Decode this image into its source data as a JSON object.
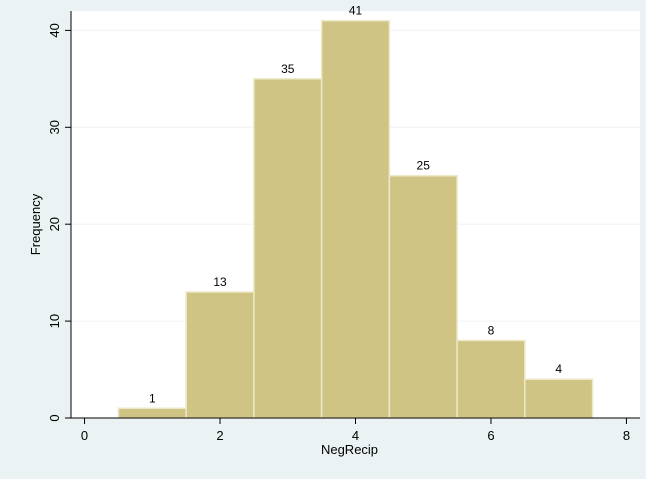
{
  "chart_data": {
    "type": "bar",
    "bin_edges": [
      0.5,
      1.5,
      2.5,
      3.5,
      4.5,
      5.5,
      6.5,
      7.5
    ],
    "values": [
      1,
      13,
      35,
      41,
      25,
      8,
      4
    ],
    "data_labels": [
      "1",
      "13",
      "35",
      "41",
      "25",
      "8",
      "4"
    ],
    "xlabel": "NegRecip",
    "ylabel": "Frequency",
    "xlim": [
      -0.2,
      8.2
    ],
    "ylim": [
      0,
      42
    ],
    "xticks": [
      0,
      2,
      4,
      6,
      8
    ],
    "xtick_labels": [
      "0",
      "2",
      "4",
      "6",
      "8"
    ],
    "yticks": [
      0,
      10,
      20,
      30,
      40
    ],
    "ytick_labels": [
      "0",
      "10",
      "20",
      "30",
      "40"
    ],
    "grid": true,
    "colors": {
      "background": "#eaf2f3",
      "plot_area": "#ffffff",
      "bar_fill": "#cfc483",
      "bar_stroke": "#ece8c8",
      "grid": "#eef3f4",
      "axis": "#000000"
    }
  }
}
